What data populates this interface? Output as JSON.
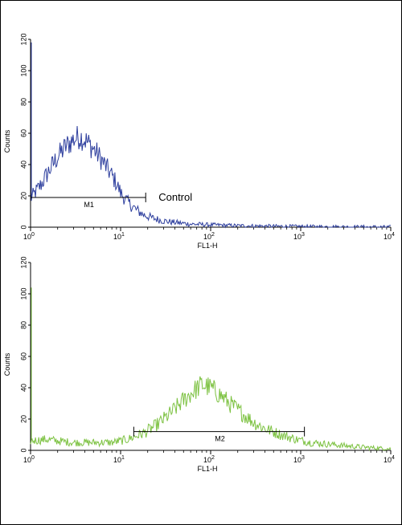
{
  "chart_data": [
    {
      "type": "line",
      "xlabel": "FL1-H",
      "ylabel": "Counts",
      "x_scale": "log",
      "xlim": [
        1,
        10000
      ],
      "ylim": [
        0,
        120
      ],
      "y_ticks": [
        0,
        20,
        40,
        60,
        80,
        100,
        120
      ],
      "x_ticks": [
        {
          "value": 1,
          "base": "10",
          "exp": "0"
        },
        {
          "value": 10,
          "base": "10",
          "exp": "1"
        },
        {
          "value": 100,
          "base": "10",
          "exp": "2"
        },
        {
          "value": 1000,
          "base": "10",
          "exp": "3"
        },
        {
          "value": 10000,
          "base": "10",
          "exp": "4"
        }
      ],
      "color": "#2e3f9e",
      "series": [
        {
          "x": [
            1,
            1.3,
            1.6,
            2,
            2.5,
            3,
            3.5,
            4,
            5,
            6,
            7,
            8,
            9,
            10,
            12,
            15,
            18,
            22,
            30,
            40,
            60,
            100,
            200,
            500,
            1000,
            3000,
            10000
          ],
          "values": [
            18,
            27,
            36,
            45,
            52,
            56,
            58,
            56,
            50,
            44,
            38,
            33,
            28,
            22,
            16,
            11,
            8,
            6,
            4,
            3,
            2,
            1.5,
            1,
            0.6,
            0.4,
            0.2,
            0
          ]
        }
      ],
      "gate": {
        "label": "M1",
        "x_start": 1,
        "x_end": 19,
        "y": 19
      },
      "annotation": "Control"
    },
    {
      "type": "line",
      "xlabel": "FL1-H",
      "ylabel": "Counts",
      "x_scale": "log",
      "xlim": [
        1,
        10000
      ],
      "ylim": [
        0,
        120
      ],
      "y_ticks": [
        0,
        20,
        40,
        60,
        80,
        100,
        120
      ],
      "x_ticks": [
        {
          "value": 1,
          "base": "10",
          "exp": "0"
        },
        {
          "value": 10,
          "base": "10",
          "exp": "1"
        },
        {
          "value": 100,
          "base": "10",
          "exp": "2"
        },
        {
          "value": 1000,
          "base": "10",
          "exp": "3"
        },
        {
          "value": 10000,
          "base": "10",
          "exp": "4"
        }
      ],
      "color": "#7dc242",
      "series": [
        {
          "x": [
            1,
            1.5,
            2,
            3,
            5,
            8,
            12,
            18,
            25,
            35,
            50,
            65,
            80,
            100,
            130,
            170,
            220,
            300,
            400,
            600,
            900,
            1300,
            2000,
            3000,
            5000,
            10000
          ],
          "values": [
            6,
            7,
            6,
            5,
            5,
            5,
            7,
            11,
            16,
            23,
            32,
            38,
            42,
            40,
            35,
            29,
            24,
            18,
            14,
            10,
            7,
            5,
            4,
            3,
            2,
            1
          ]
        }
      ],
      "gate": {
        "label": "M2",
        "x_start": 14,
        "x_end": 1100,
        "y": 12
      }
    }
  ]
}
